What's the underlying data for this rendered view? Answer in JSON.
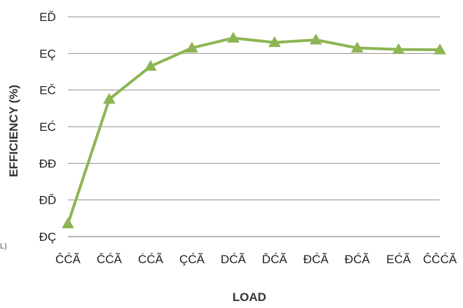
{
  "chart_data": {
    "type": "line",
    "title": "",
    "xlabel": "LOAD",
    "ylabel": "EFFICIENCY (%)",
    "categories": [
      "ĈĆÃ",
      "ČĆÃ",
      "ĊĆÃ",
      "ÇĆÃ",
      "DĆÃ",
      "ĎĆÃ",
      "ĐĆÃ",
      "ĐĆÃ",
      "EĆÃ",
      "ĈĈĆÃ"
    ],
    "y_tick_labels": [
      "ĐÇ",
      "ĐĎ",
      "ĐĐ",
      "EĆ",
      "EČ",
      "EÇ",
      "EĎ"
    ],
    "ylim": [
      0,
      6
    ],
    "values": [
      0.35,
      3.75,
      4.65,
      5.15,
      5.42,
      5.3,
      5.37,
      5.15,
      5.11,
      5.1
    ],
    "grid": true,
    "legend": "none",
    "color": "#8db553",
    "marker": "triangle"
  },
  "stray_label": "L)"
}
